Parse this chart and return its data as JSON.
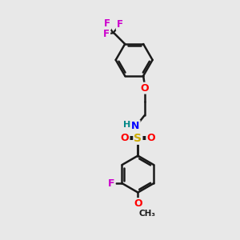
{
  "bg_color": "#e8e8e8",
  "bond_color": "#1a1a1a",
  "bond_width": 1.8,
  "atom_colors": {
    "F": "#cc00cc",
    "O": "#ff0000",
    "N": "#0000ff",
    "S": "#ccaa00",
    "C": "#1a1a1a",
    "H": "#008888"
  },
  "font_size": 9,
  "fig_size": [
    3.0,
    3.0
  ],
  "dpi": 100
}
